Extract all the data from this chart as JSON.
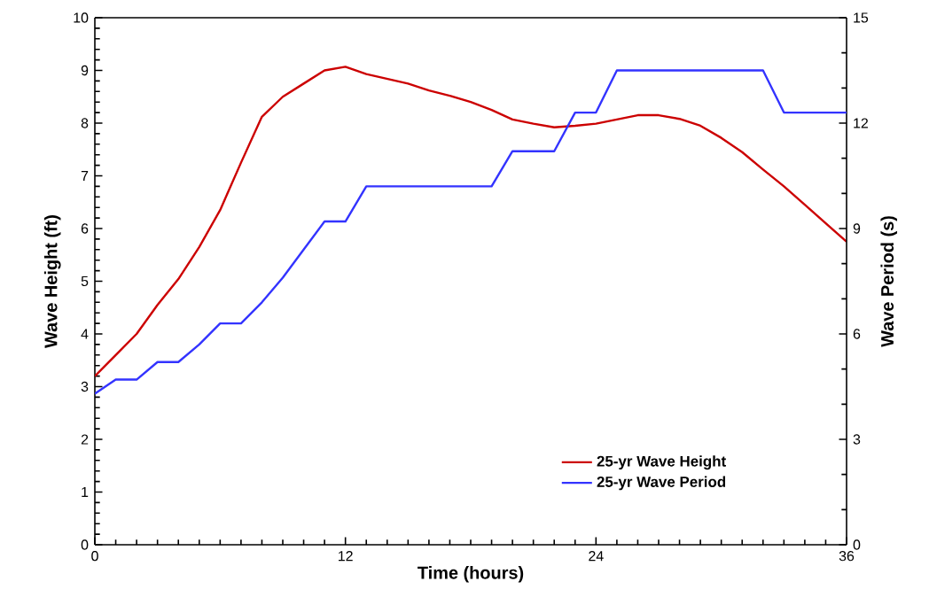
{
  "chart_data": {
    "type": "line",
    "xlabel": "Time (hours)",
    "ylabel": "Wave Height (ft)",
    "y2label": "Wave Period (s)",
    "x": [
      0,
      1,
      2,
      3,
      4,
      5,
      6,
      7,
      8,
      9,
      10,
      11,
      12,
      13,
      14,
      15,
      16,
      17,
      18,
      19,
      20,
      21,
      22,
      23,
      24,
      25,
      26,
      27,
      28,
      29,
      30,
      31,
      32,
      33,
      34,
      35,
      36
    ],
    "series": [
      {
        "name": "25-yr Wave Height",
        "color": "#cc0000",
        "values": [
          3.2,
          3.6,
          4.0,
          4.55,
          5.04,
          5.65,
          6.35,
          7.25,
          8.12,
          8.5,
          8.75,
          9.0,
          9.07,
          8.93,
          8.84,
          8.75,
          8.62,
          8.52,
          8.4,
          8.25,
          8.07,
          7.99,
          7.92,
          7.95,
          7.99,
          8.07,
          8.15,
          8.15,
          8.08,
          7.95,
          7.72,
          7.45,
          7.12,
          6.8,
          6.45,
          6.1,
          5.75
        ]
      },
      {
        "name": "25-yr Wave Period",
        "color": "#3333ff",
        "axis": "y2",
        "values": [
          4.3,
          4.7,
          4.7,
          5.2,
          5.2,
          5.7,
          6.3,
          6.3,
          6.9,
          7.6,
          8.4,
          9.2,
          9.2,
          10.2,
          10.2,
          10.2,
          10.2,
          10.2,
          10.2,
          10.2,
          11.2,
          11.2,
          11.2,
          12.3,
          12.3,
          13.5,
          13.5,
          13.5,
          13.5,
          13.5,
          13.5,
          13.5,
          13.5,
          12.3,
          12.3,
          12.3,
          12.3
        ]
      }
    ],
    "xlim": [
      0,
      36
    ],
    "xticks": [
      0,
      12,
      24,
      36
    ],
    "ylim": [
      0,
      10
    ],
    "yticks": [
      0,
      1,
      2,
      3,
      4,
      5,
      6,
      7,
      8,
      9,
      10
    ],
    "y2lim": [
      0,
      15
    ],
    "y2ticks": [
      0,
      3,
      6,
      9,
      12,
      15
    ],
    "legend": "bottom right",
    "grid": false,
    "marker": "none",
    "line_style": "solid"
  }
}
